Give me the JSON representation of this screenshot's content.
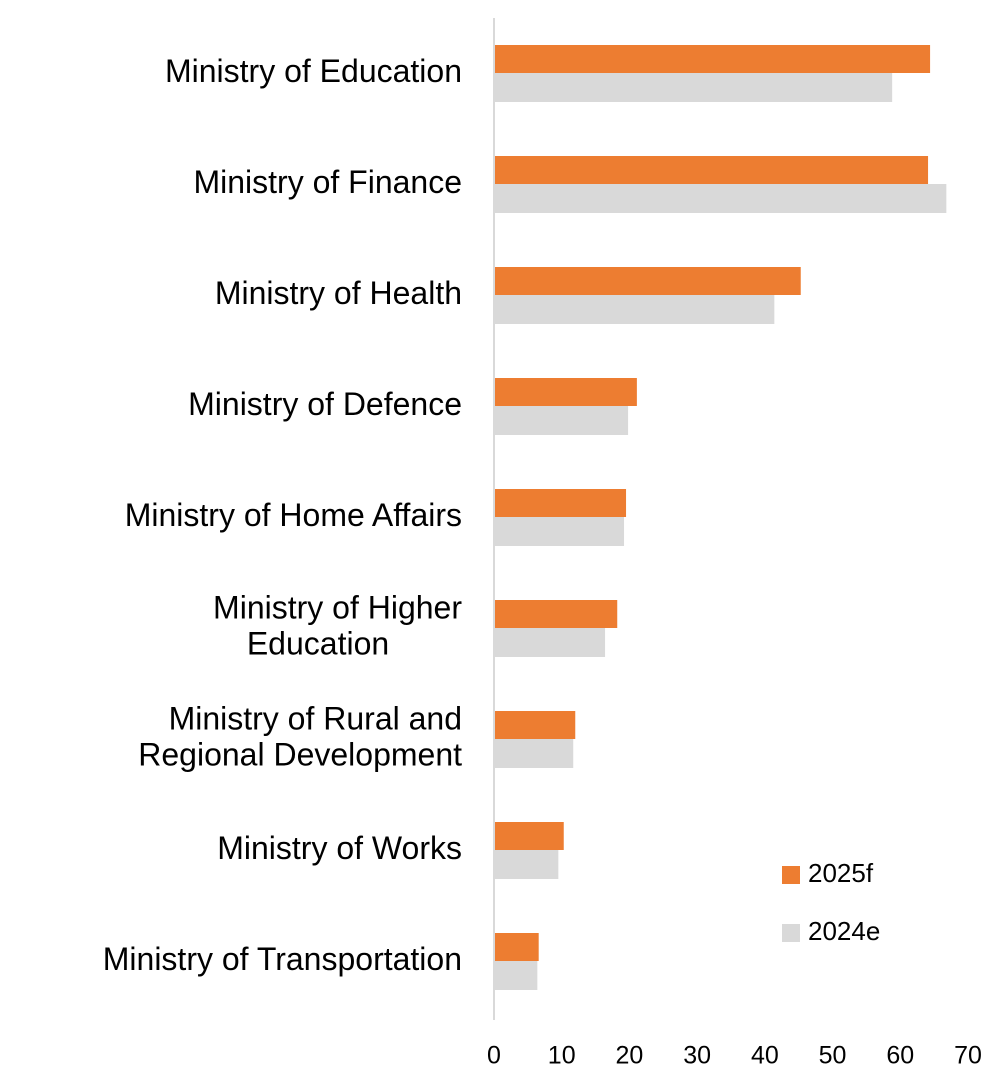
{
  "chart_data": {
    "type": "bar",
    "orientation": "horizontal",
    "categories": [
      "Ministry of Education",
      "Ministry of Finance",
      "Ministry of Health",
      "Ministry of Defence",
      "Ministry of Home Affairs",
      "Ministry of Higher\nEducation",
      "Ministry of Rural and\nRegional Development",
      "Ministry of Works",
      "Ministry of Transportation"
    ],
    "series": [
      {
        "name": "2025f",
        "color": "#ED7D31",
        "values": [
          64.4,
          64.1,
          45.3,
          21.1,
          19.5,
          18.2,
          12.0,
          10.3,
          6.6
        ]
      },
      {
        "name": "2024e",
        "color": "#D9D9D9",
        "values": [
          58.8,
          66.8,
          41.4,
          19.8,
          19.2,
          16.4,
          11.7,
          9.5,
          6.4
        ]
      }
    ],
    "xlim": [
      0,
      70
    ],
    "xticks": [
      0,
      10,
      20,
      30,
      40,
      50,
      60,
      70
    ],
    "grid": false,
    "legend": "lower right"
  }
}
